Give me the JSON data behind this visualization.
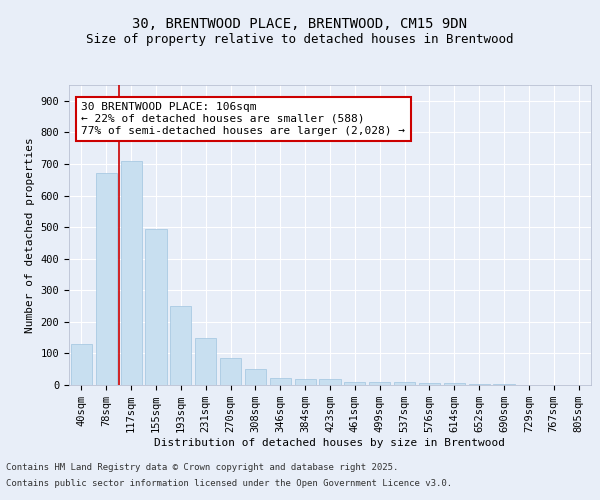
{
  "title_line1": "30, BRENTWOOD PLACE, BRENTWOOD, CM15 9DN",
  "title_line2": "Size of property relative to detached houses in Brentwood",
  "xlabel": "Distribution of detached houses by size in Brentwood",
  "ylabel": "Number of detached properties",
  "categories": [
    "40sqm",
    "78sqm",
    "117sqm",
    "155sqm",
    "193sqm",
    "231sqm",
    "270sqm",
    "308sqm",
    "346sqm",
    "384sqm",
    "423sqm",
    "461sqm",
    "499sqm",
    "537sqm",
    "576sqm",
    "614sqm",
    "652sqm",
    "690sqm",
    "729sqm",
    "767sqm",
    "805sqm"
  ],
  "values": [
    130,
    670,
    710,
    495,
    250,
    150,
    85,
    50,
    22,
    20,
    18,
    8,
    10,
    8,
    7,
    5,
    3,
    2,
    1,
    1,
    0
  ],
  "bar_color": "#c8dff0",
  "bar_edge_color": "#a0c4e0",
  "vline_index": 1.5,
  "vline_color": "#cc0000",
  "annotation_text": "30 BRENTWOOD PLACE: 106sqm\n← 22% of detached houses are smaller (588)\n77% of semi-detached houses are larger (2,028) →",
  "annotation_box_facecolor": "#ffffff",
  "annotation_box_edgecolor": "#cc0000",
  "ylim": [
    0,
    950
  ],
  "yticks": [
    0,
    100,
    200,
    300,
    400,
    500,
    600,
    700,
    800,
    900
  ],
  "bg_color": "#e8eef8",
  "plot_bg_color": "#e8eef8",
  "footer_line1": "Contains HM Land Registry data © Crown copyright and database right 2025.",
  "footer_line2": "Contains public sector information licensed under the Open Government Licence v3.0.",
  "title_fontsize": 10,
  "subtitle_fontsize": 9,
  "axis_label_fontsize": 8,
  "tick_fontsize": 7.5,
  "annotation_fontsize": 8,
  "footer_fontsize": 6.5
}
